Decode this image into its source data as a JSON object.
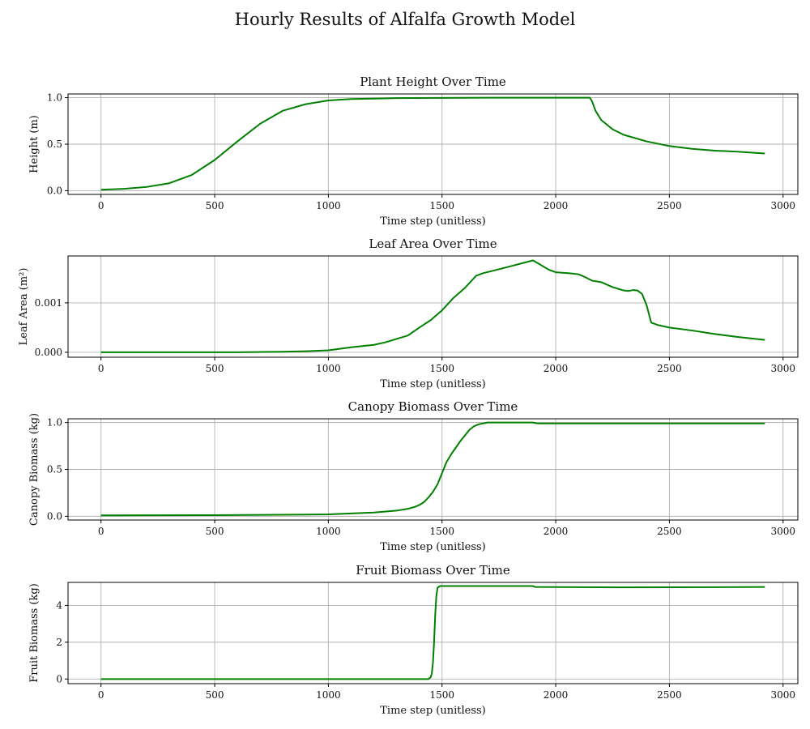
{
  "figure_title": "Hourly Results of Alfalfa Growth Model",
  "colors": {
    "series": "#008000",
    "grid": "#b0b0b0"
  },
  "chart_data": [
    {
      "type": "line",
      "title": "Plant Height Over Time",
      "xlabel": "Time step (unitless)",
      "ylabel": "Height (m)",
      "xlim": [
        -145,
        3065
      ],
      "ylim": [
        -0.04,
        1.04
      ],
      "xticks": [
        0,
        500,
        1000,
        1500,
        2000,
        2500,
        3000
      ],
      "yticks": [
        0.0,
        0.5,
        1.0
      ],
      "ytick_labels": [
        "0.0",
        "0.5",
        "1.0"
      ],
      "grid": true,
      "series": [
        {
          "x": [
            0,
            100,
            200,
            300,
            400,
            500,
            600,
            700,
            800,
            900,
            1000,
            1100,
            1200,
            1300,
            1500,
            1700,
            2000,
            2150,
            2160,
            2175,
            2200,
            2250,
            2300,
            2400,
            2500,
            2600,
            2700,
            2800,
            2920
          ],
          "y": [
            0.01,
            0.02,
            0.04,
            0.08,
            0.17,
            0.33,
            0.53,
            0.72,
            0.86,
            0.93,
            0.97,
            0.985,
            0.99,
            0.995,
            0.998,
            1.0,
            1.0,
            1.0,
            0.96,
            0.86,
            0.76,
            0.66,
            0.6,
            0.53,
            0.48,
            0.45,
            0.43,
            0.42,
            0.4
          ]
        }
      ]
    },
    {
      "type": "line",
      "title": "Leaf Area Over Time",
      "xlabel": "Time step (unitless)",
      "ylabel": "Leaf Area (m²)",
      "xlim": [
        -145,
        3065
      ],
      "ylim": [
        -0.0001,
        0.00195
      ],
      "xticks": [
        0,
        500,
        1000,
        1500,
        2000,
        2500,
        3000
      ],
      "yticks": [
        0.0,
        0.001
      ],
      "ytick_labels": [
        "0.000",
        "0.001"
      ],
      "grid": true,
      "series": [
        {
          "x": [
            0,
            300,
            600,
            800,
            900,
            1000,
            1100,
            1200,
            1250,
            1300,
            1350,
            1400,
            1450,
            1500,
            1550,
            1600,
            1650,
            1680,
            1750,
            1800,
            1850,
            1900,
            1930,
            1970,
            2000,
            2030,
            2060,
            2100,
            2130,
            2160,
            2200,
            2250,
            2300,
            2320,
            2340,
            2360,
            2380,
            2400,
            2420,
            2450,
            2500,
            2600,
            2700,
            2800,
            2920
          ],
          "y": [
            0.0,
            0.0,
            0.0,
            1e-05,
            2e-05,
            4e-05,
            0.0001,
            0.00015,
            0.0002,
            0.00027,
            0.00034,
            0.0005,
            0.00065,
            0.00085,
            0.0011,
            0.0013,
            0.00155,
            0.0016,
            0.00168,
            0.00174,
            0.0018,
            0.00186,
            0.00178,
            0.00167,
            0.00162,
            0.00161,
            0.0016,
            0.00158,
            0.00152,
            0.00145,
            0.00142,
            0.00132,
            0.00125,
            0.00124,
            0.00126,
            0.00125,
            0.00118,
            0.00095,
            0.0006,
            0.00055,
            0.0005,
            0.00044,
            0.00037,
            0.00031,
            0.00025
          ]
        }
      ]
    },
    {
      "type": "line",
      "title": "Canopy Biomass Over Time",
      "xlabel": "Time step (unitless)",
      "ylabel": "Canopy Biomass (kg)",
      "xlim": [
        -145,
        3065
      ],
      "ylim": [
        -0.04,
        1.04
      ],
      "xticks": [
        0,
        500,
        1000,
        1500,
        2000,
        2500,
        3000
      ],
      "yticks": [
        0.0,
        0.5,
        1.0
      ],
      "ytick_labels": [
        "0.0",
        "0.5",
        "1.0"
      ],
      "grid": true,
      "series": [
        {
          "x": [
            0,
            500,
            1000,
            1100,
            1200,
            1300,
            1350,
            1380,
            1400,
            1420,
            1440,
            1460,
            1480,
            1500,
            1520,
            1540,
            1560,
            1580,
            1600,
            1620,
            1640,
            1660,
            1680,
            1700,
            1750,
            1800,
            1850,
            1900,
            1920,
            2200,
            2500,
            2920
          ],
          "y": [
            0.01,
            0.012,
            0.02,
            0.03,
            0.04,
            0.06,
            0.08,
            0.1,
            0.12,
            0.15,
            0.2,
            0.26,
            0.34,
            0.46,
            0.58,
            0.66,
            0.73,
            0.8,
            0.86,
            0.92,
            0.96,
            0.98,
            0.99,
            1.0,
            1.0,
            1.0,
            1.0,
            1.0,
            0.99,
            0.99,
            0.99,
            0.99
          ]
        }
      ]
    },
    {
      "type": "line",
      "title": "Fruit Biomass Over Time",
      "xlabel": "Time step (unitless)",
      "ylabel": "Fruit Biomass (kg)",
      "xlim": [
        -145,
        3065
      ],
      "ylim": [
        -0.25,
        5.25
      ],
      "xticks": [
        0,
        500,
        1000,
        1500,
        2000,
        2500,
        3000
      ],
      "yticks": [
        0,
        2,
        4
      ],
      "ytick_labels": [
        "0",
        "2",
        "4"
      ],
      "grid": true,
      "series": [
        {
          "x": [
            0,
            1000,
            1440,
            1450,
            1455,
            1460,
            1465,
            1470,
            1475,
            1480,
            1490,
            1500,
            1900,
            1910,
            2300,
            2920
          ],
          "y": [
            0,
            0,
            0.0,
            0.1,
            0.3,
            0.9,
            2.0,
            3.5,
            4.5,
            4.95,
            5.05,
            5.05,
            5.05,
            5.0,
            4.98,
            5.0
          ]
        }
      ]
    }
  ]
}
